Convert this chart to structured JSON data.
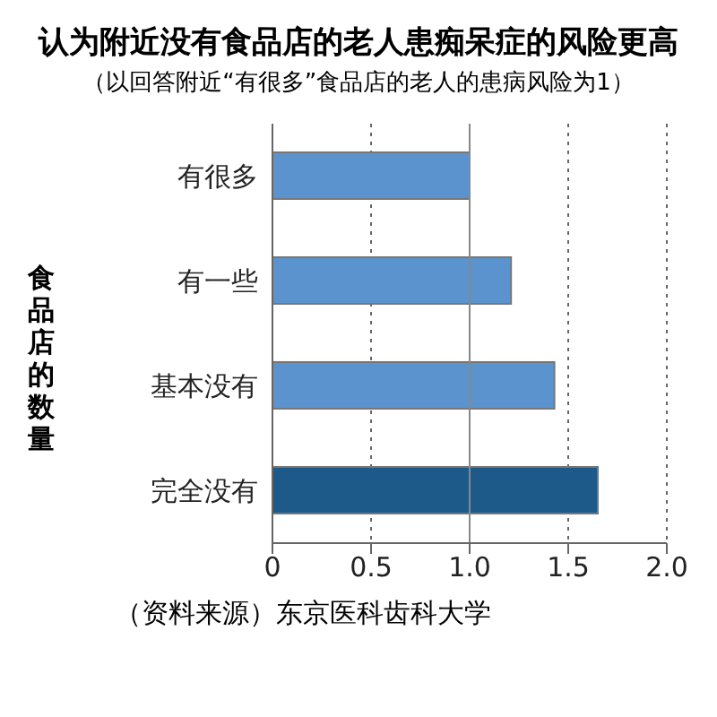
{
  "chart_data": {
    "type": "bar",
    "orientation": "horizontal",
    "title": "认为附近没有食品店的老人患痴呆症的风险更高",
    "subtitle": "（以回答附近“有很多”食品店的老人的患病风险为1）",
    "ylabel": "食品店的数量",
    "categories": [
      "有很多",
      "有一些",
      "基本没有",
      "完全没有"
    ],
    "values": [
      1.0,
      1.21,
      1.43,
      1.65
    ],
    "colors": [
      "#5b93cf",
      "#5b93cf",
      "#5b93cf",
      "#1d5a8a"
    ],
    "xlim": [
      0,
      2
    ],
    "xticks": [
      0,
      {
        "value": 0.5,
        "label": "0.5"
      },
      {
        "value": 1,
        "label": "1.0"
      },
      {
        "value": 1.5,
        "label": "1.5"
      },
      {
        "value": 2,
        "label": "2.0"
      }
    ],
    "grid": "x",
    "ref_lines": [
      {
        "axis": "x",
        "value": 1,
        "label": null,
        "color": "#888888",
        "line_style": "solid"
      }
    ],
    "annotations": [
      "（资料来源）东京医科齿科大学"
    ]
  }
}
